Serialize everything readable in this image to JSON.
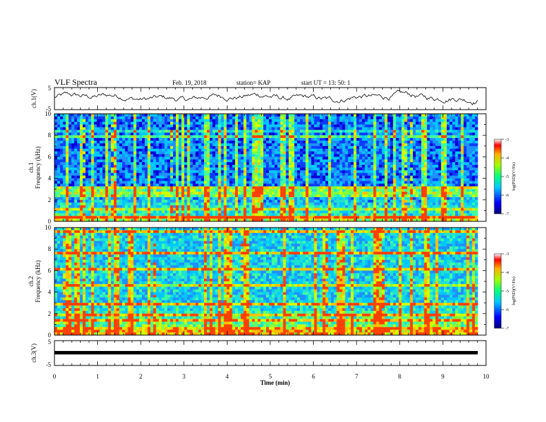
{
  "header": {
    "title": "VLF Spectra",
    "date": "Feb. 19, 2018",
    "station": "station= KAP",
    "start": "start  UT =   13: 50: 1"
  },
  "colorbar": {
    "label": "log(PSD)(V²/Hz)",
    "ticks": [
      "-3",
      "-4",
      "-5",
      "-6",
      "-7"
    ]
  },
  "chart_data": [
    {
      "type": "line",
      "ylabel": "ch.1(V)",
      "ylim": [
        -5,
        5
      ],
      "yticks": [
        "5",
        "-5"
      ],
      "xlim": [
        0,
        10
      ],
      "description": "waveform amplitude approx -1 to +2 V"
    },
    {
      "type": "heatmap",
      "ylabel_line1": "ch.1",
      "ylabel_line2": "Frequency (kHz)",
      "ylim": [
        0,
        10
      ],
      "yticks": [
        "10",
        "8",
        "6",
        "4",
        "2",
        "0"
      ],
      "xlim": [
        0,
        10
      ],
      "zlim": [
        -7,
        -3
      ]
    },
    {
      "type": "heatmap",
      "ylabel_line1": "ch.2",
      "ylabel_line2": "Frequency (kHz)",
      "ylim": [
        0,
        10
      ],
      "yticks": [
        "10",
        "8",
        "6",
        "4",
        "2",
        "0"
      ],
      "xlim": [
        0,
        10
      ],
      "zlim": [
        -7,
        -3
      ]
    },
    {
      "type": "line",
      "ylabel": "ch.3(V)",
      "ylim": [
        -5,
        5
      ],
      "yticks": [
        "5",
        "-5"
      ],
      "xlim": [
        0,
        10
      ],
      "description": "flat at approx -1 V"
    }
  ],
  "xaxis": {
    "label": "Time (min)",
    "ticks": [
      "0",
      "1",
      "2",
      "3",
      "4",
      "5",
      "6",
      "7",
      "8",
      "9",
      "10"
    ]
  }
}
